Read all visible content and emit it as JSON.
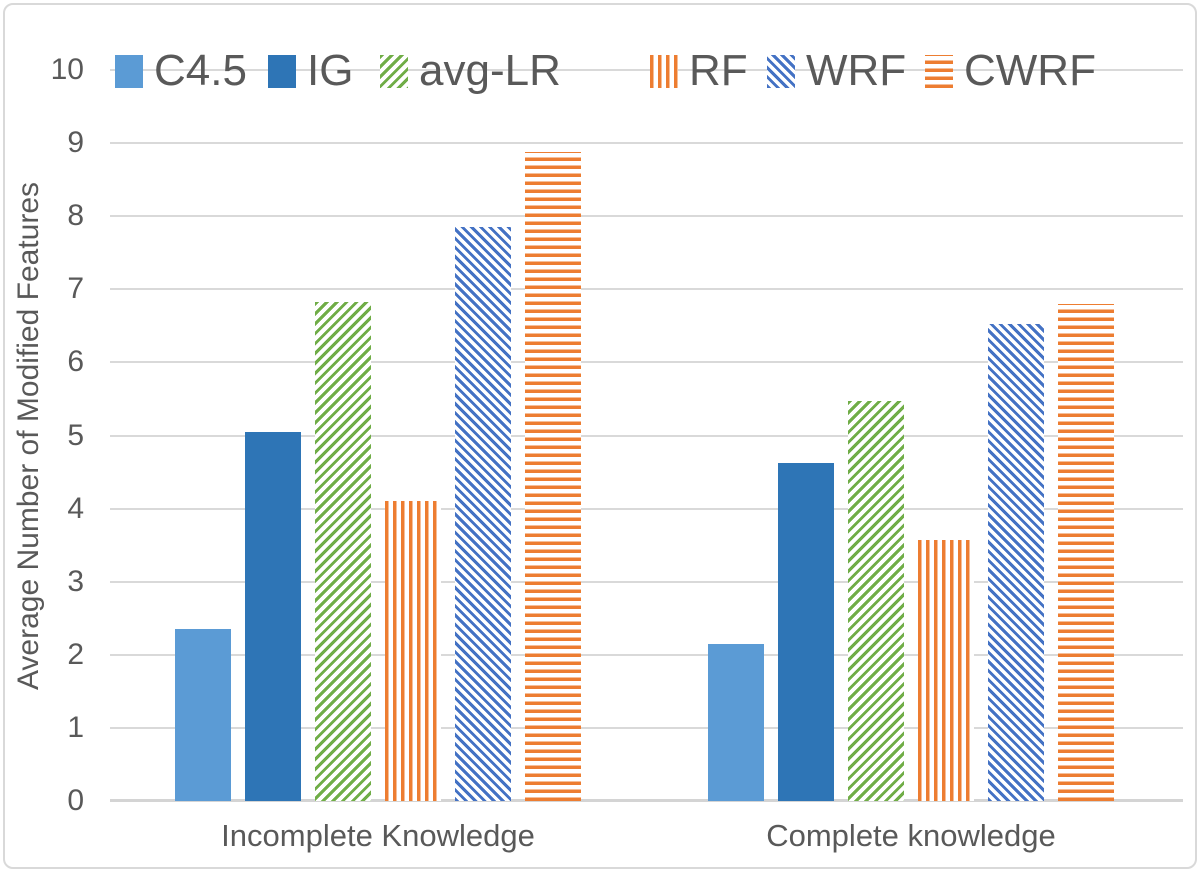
{
  "chart_data": {
    "type": "bar",
    "title": "",
    "categories": [
      "Incomplete Knowledge",
      "Complete knowledge"
    ],
    "series": [
      {
        "name": "C4.5",
        "values": [
          2.35,
          2.15
        ],
        "color": "#5B9BD5",
        "pattern": "solid"
      },
      {
        "name": "IG",
        "values": [
          5.05,
          4.63
        ],
        "color": "#2E75B6",
        "pattern": "solid"
      },
      {
        "name": "avg-LR",
        "values": [
          6.83,
          5.47
        ],
        "color": "#70AD47",
        "pattern": "diagonal-up"
      },
      {
        "name": "RF",
        "values": [
          4.1,
          3.57
        ],
        "color": "#ED7D31",
        "pattern": "vertical-stripes"
      },
      {
        "name": "WRF",
        "values": [
          7.85,
          6.53
        ],
        "color": "#4472C4",
        "pattern": "diagonal-down"
      },
      {
        "name": "CWRF",
        "values": [
          8.88,
          6.8
        ],
        "color": "#ED7D31",
        "pattern": "horizontal-stripes"
      }
    ],
    "xlabel": "",
    "ylabel": "Average Number of Modified Features",
    "ylim": [
      0,
      10
    ],
    "yticks": [
      0,
      1,
      2,
      3,
      4,
      5,
      6,
      7,
      8,
      9,
      10
    ],
    "grid": true,
    "legend_position": "top",
    "gridline_color": "#D9D9D9",
    "text_color": "#595959",
    "background_color": "#FFFFFF",
    "border_color": "#D9D9D9"
  }
}
